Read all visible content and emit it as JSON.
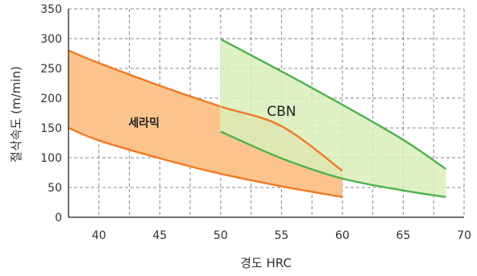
{
  "chart_data": {
    "type": "area",
    "xlabel": "경도 HRC",
    "ylabel": "절삭속도 (m/min)",
    "xlim": [
      37.5,
      70
    ],
    "ylim": [
      0,
      350
    ],
    "x_ticks": [
      40,
      45,
      50,
      55,
      60,
      65,
      70
    ],
    "y_ticks": [
      0,
      50,
      100,
      150,
      200,
      250,
      300,
      350
    ],
    "x_grid_extra": [
      42.5,
      47.5,
      52.5,
      57.5,
      62.5,
      67.5
    ],
    "grid": true,
    "legend": "none",
    "bands": [
      {
        "name": "세라믹",
        "fill": "#fcc48c",
        "stroke": "#f07a26",
        "upper": [
          [
            37.5,
            280
          ],
          [
            40,
            259
          ],
          [
            45,
            221
          ],
          [
            50,
            186
          ],
          [
            55,
            153
          ],
          [
            60,
            78
          ]
        ],
        "lower": [
          [
            37.5,
            150
          ],
          [
            40,
            129
          ],
          [
            45,
            99
          ],
          [
            50,
            73
          ],
          [
            55,
            52
          ],
          [
            60,
            34
          ]
        ]
      },
      {
        "name": "CBN",
        "fill": "#d9eebb",
        "stroke": "#4db34d",
        "upper": [
          [
            50,
            299
          ],
          [
            55,
            245
          ],
          [
            60,
            189
          ],
          [
            65,
            130
          ],
          [
            68.5,
            81
          ]
        ],
        "lower": [
          [
            50,
            144
          ],
          [
            55,
            99
          ],
          [
            60,
            65
          ],
          [
            65,
            45
          ],
          [
            68.5,
            34
          ]
        ]
      }
    ],
    "colors": {
      "ceramic_fill": "#fcc48c",
      "ceramic_line": "#f07a26",
      "cbn_fill": "#d9eebb",
      "cbn_line": "#4db34d",
      "overlap_fill": "#f2cd95"
    }
  }
}
